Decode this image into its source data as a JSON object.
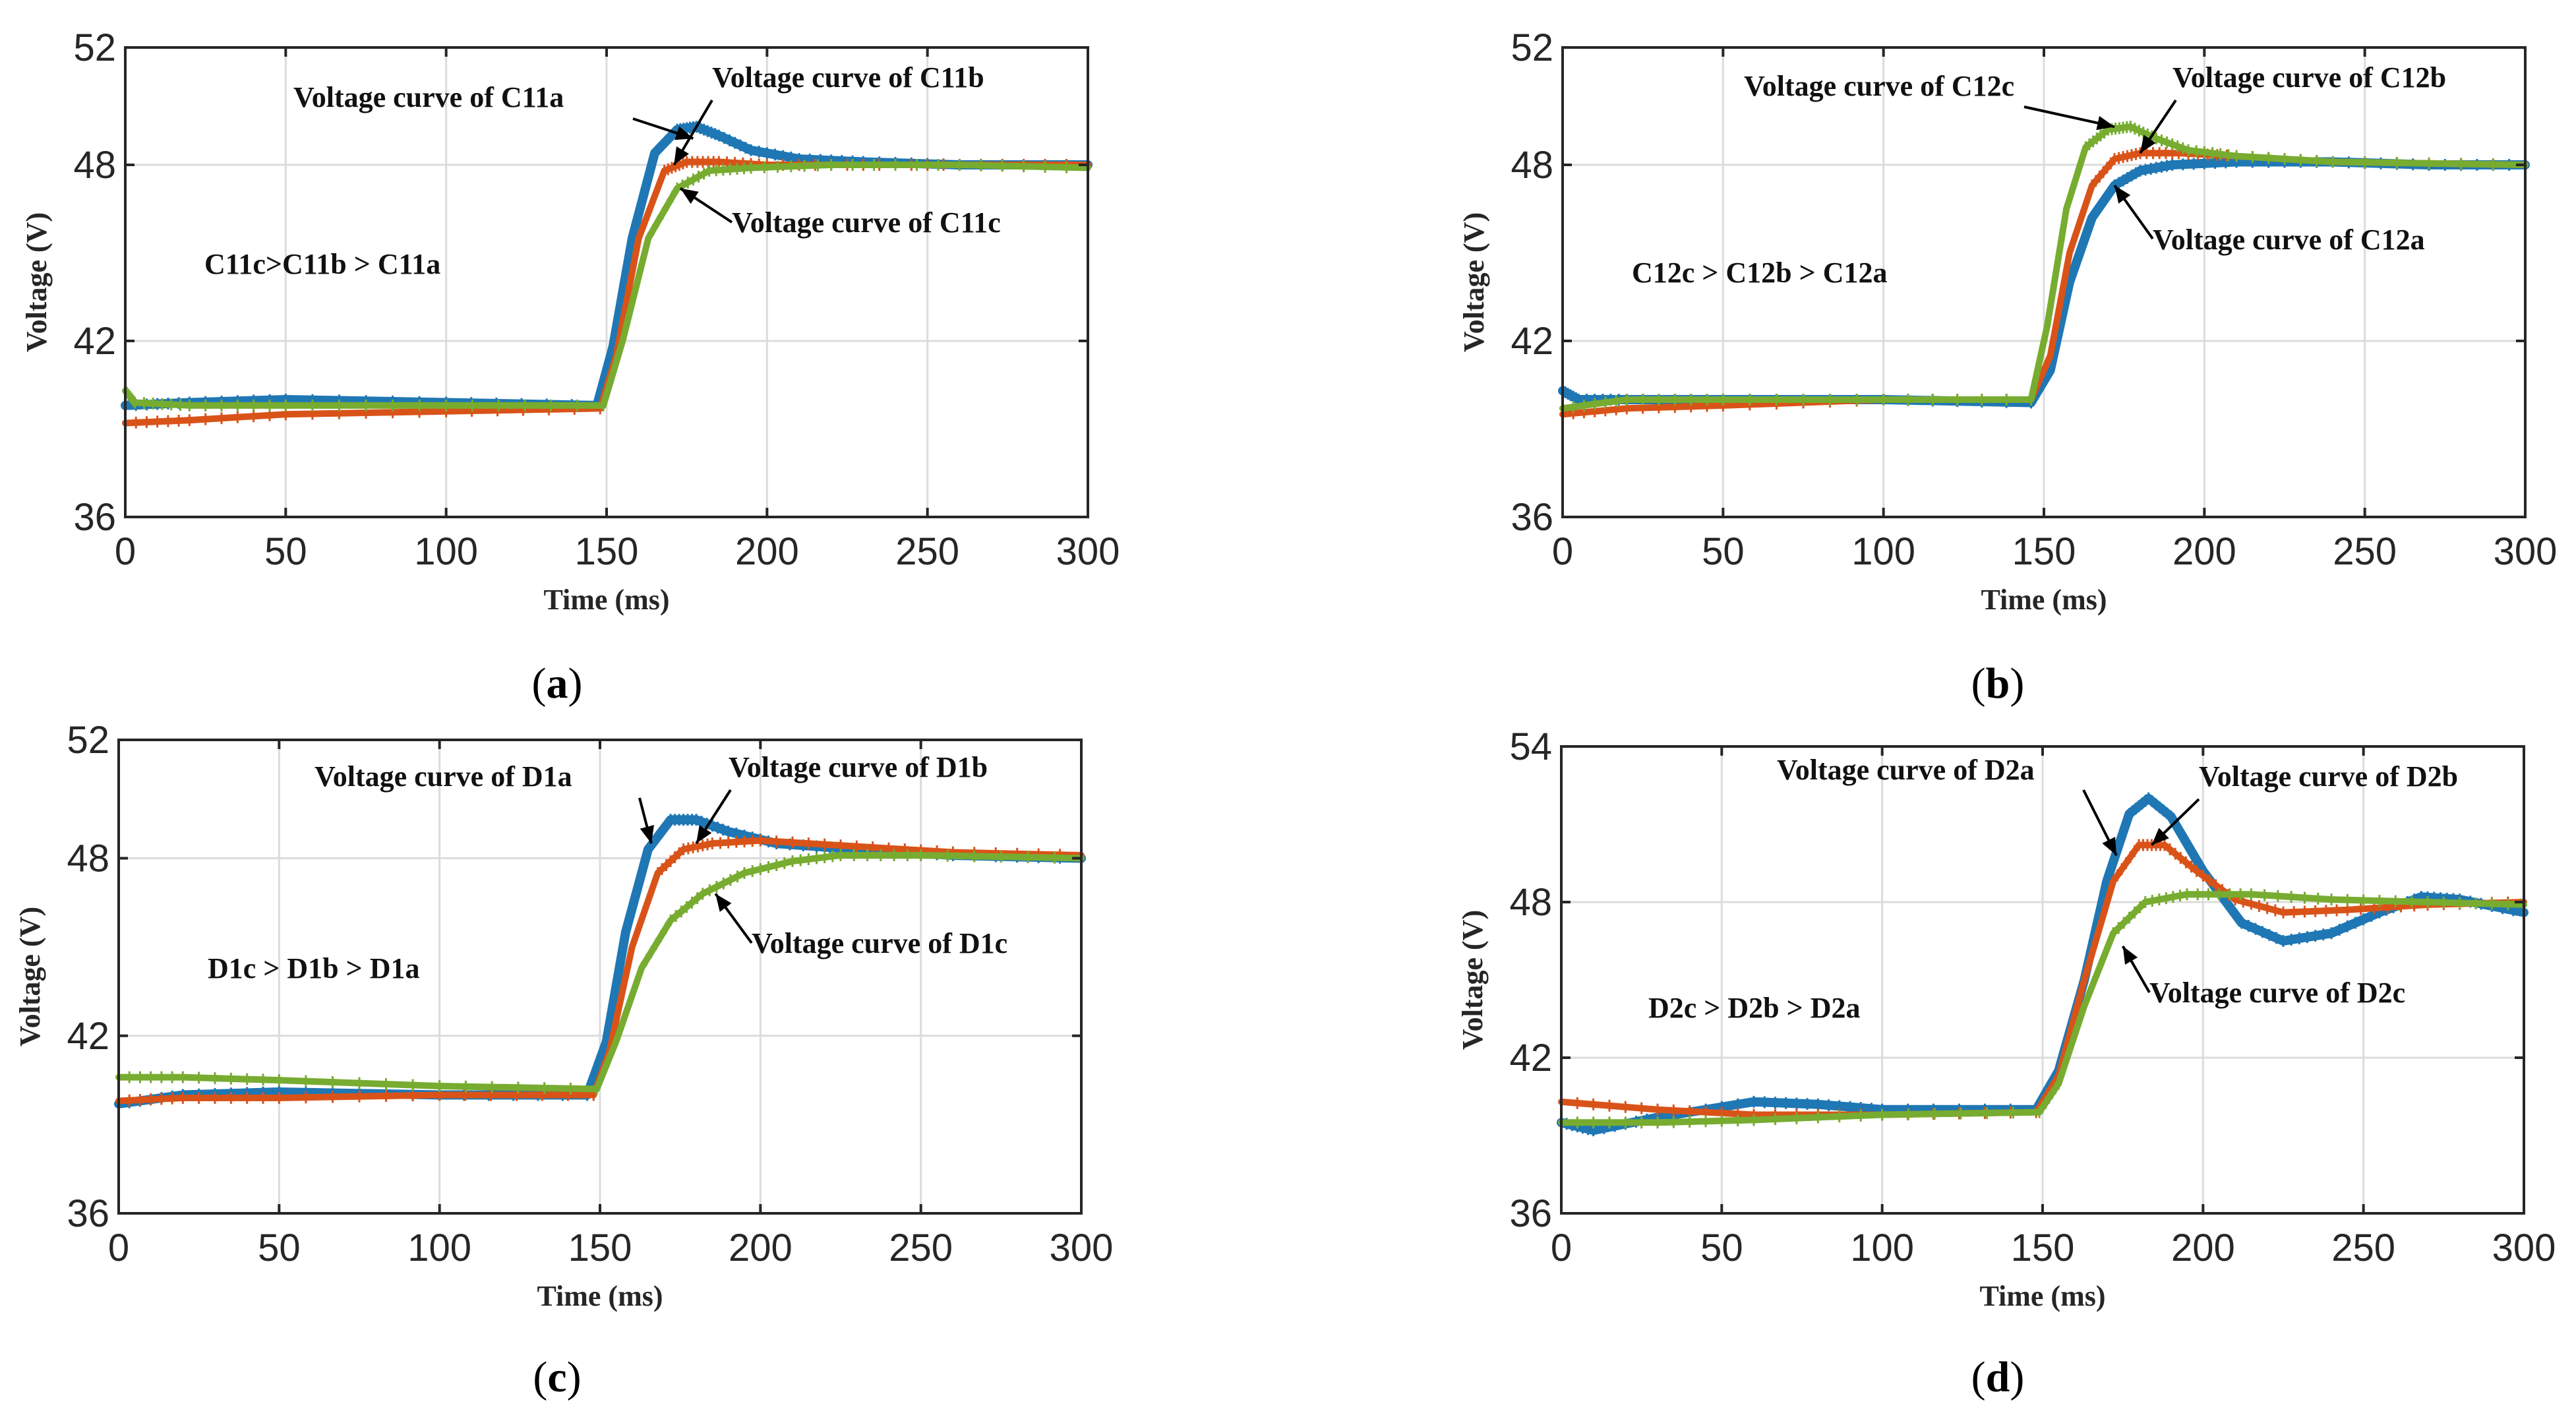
{
  "chart_data": [
    {
      "type": "line",
      "panel": "(a)",
      "caption": {
        "open": "(",
        "letter": "a",
        "close": ")"
      },
      "xlabel": "Time (ms)",
      "ylabel": "Voltage (V)",
      "xlim": [
        0,
        300
      ],
      "ylim": [
        36,
        52
      ],
      "xticks": [
        0,
        50,
        100,
        150,
        200,
        250,
        300
      ],
      "yticks": [
        36,
        42,
        48,
        52
      ],
      "grid": true,
      "inequality": "C11c>C11b > C11a",
      "series": [
        {
          "color": "#1f77b4",
          "x": [
            0,
            20,
            50,
            100,
            147,
            152,
            158,
            165,
            172,
            178,
            185,
            195,
            210,
            230,
            260,
            300
          ],
          "y": [
            39.8,
            39.9,
            40.0,
            39.9,
            39.8,
            41.8,
            45.5,
            48.4,
            49.2,
            49.3,
            49.0,
            48.5,
            48.2,
            48.1,
            48.0,
            48.0
          ]
        },
        {
          "color": "#d95319",
          "x": [
            0,
            20,
            50,
            100,
            148,
            153,
            160,
            168,
            175,
            185,
            200,
            230,
            260,
            300
          ],
          "y": [
            39.2,
            39.3,
            39.5,
            39.6,
            39.7,
            41.5,
            45.5,
            47.8,
            48.1,
            48.1,
            48.0,
            48.0,
            48.0,
            48.0
          ]
        },
        {
          "color": "#77ac30",
          "x": [
            0,
            3,
            20,
            50,
            100,
            149,
            155,
            163,
            172,
            182,
            195,
            220,
            260,
            300
          ],
          "y": [
            40.3,
            39.9,
            39.8,
            39.8,
            39.8,
            39.8,
            42.0,
            45.5,
            47.2,
            47.8,
            47.9,
            48.0,
            48.0,
            47.9
          ]
        }
      ],
      "annotations": [
        {
          "text": "Voltage curve of C11a",
          "at": [
            177,
            48.9
          ]
        },
        {
          "text": "Voltage curve of C11b",
          "at": [
            171,
            48.0
          ]
        },
        {
          "text": "Voltage curve of C11c",
          "at": [
            173,
            47.2
          ]
        }
      ]
    },
    {
      "type": "line",
      "panel": "(b)",
      "caption": {
        "open": "(",
        "letter": "b",
        "close": ")"
      },
      "xlabel": "Time (ms)",
      "ylabel": "Voltage (V)",
      "xlim": [
        0,
        300
      ],
      "ylim": [
        36,
        52
      ],
      "xticks": [
        0,
        50,
        100,
        150,
        200,
        250,
        300
      ],
      "yticks": [
        36,
        42,
        48,
        52
      ],
      "grid": true,
      "inequality": "C12c > C12b > C12a",
      "series": [
        {
          "color": "#1f77b4",
          "x": [
            0,
            5,
            20,
            50,
            100,
            146,
            152,
            158,
            165,
            172,
            180,
            190,
            210,
            240,
            270,
            300
          ],
          "y": [
            40.3,
            40.0,
            40.0,
            40.0,
            40.0,
            39.9,
            41.0,
            44.0,
            46.2,
            47.3,
            47.8,
            48.0,
            48.1,
            48.1,
            48.0,
            48.0
          ]
        },
        {
          "color": "#d95319",
          "x": [
            0,
            20,
            50,
            100,
            146,
            152,
            158,
            165,
            172,
            180,
            192,
            210,
            240,
            300
          ],
          "y": [
            39.5,
            39.7,
            39.8,
            40.0,
            40.0,
            41.5,
            45.0,
            47.3,
            48.2,
            48.4,
            48.4,
            48.3,
            48.1,
            48.0
          ]
        },
        {
          "color": "#77ac30",
          "x": [
            0,
            20,
            50,
            100,
            146,
            151,
            157,
            163,
            170,
            177,
            185,
            195,
            210,
            240,
            300
          ],
          "y": [
            39.7,
            40.0,
            40.0,
            40.0,
            40.0,
            42.5,
            46.5,
            48.6,
            49.2,
            49.3,
            48.9,
            48.5,
            48.3,
            48.1,
            48.0
          ]
        }
      ],
      "annotations": [
        {
          "text": "Voltage curve of C12c",
          "at": [
            172,
            49.3
          ]
        },
        {
          "text": "Voltage curve of C12b",
          "at": [
            180,
            48.4
          ]
        },
        {
          "text": "Voltage curve of C12a",
          "at": [
            172,
            47.3
          ]
        }
      ]
    },
    {
      "type": "line",
      "panel": "(c)",
      "caption": {
        "open": "(",
        "letter": "c",
        "close": ")"
      },
      "xlabel": "Time (ms)",
      "ylabel": "Voltage (V)",
      "xlim": [
        0,
        300
      ],
      "ylim": [
        36,
        52
      ],
      "xticks": [
        0,
        50,
        100,
        150,
        200,
        250,
        300
      ],
      "yticks": [
        36,
        42,
        48,
        52
      ],
      "grid": true,
      "inequality": "D1c > D1b > D1a",
      "series": [
        {
          "color": "#1f77b4",
          "x": [
            0,
            20,
            50,
            100,
            146,
            152,
            158,
            165,
            172,
            180,
            190,
            205,
            230,
            260,
            300
          ],
          "y": [
            39.7,
            40.0,
            40.1,
            40.0,
            40.0,
            41.8,
            45.5,
            48.3,
            49.3,
            49.3,
            48.9,
            48.5,
            48.3,
            48.1,
            48.0
          ]
        },
        {
          "color": "#d95319",
          "x": [
            0,
            20,
            50,
            100,
            148,
            153,
            160,
            168,
            176,
            185,
            200,
            230,
            260,
            300
          ],
          "y": [
            39.8,
            39.9,
            39.9,
            40.0,
            40.0,
            41.5,
            45.0,
            47.5,
            48.3,
            48.5,
            48.6,
            48.4,
            48.2,
            48.1
          ]
        },
        {
          "color": "#77ac30",
          "x": [
            0,
            20,
            50,
            100,
            149,
            155,
            163,
            172,
            182,
            195,
            210,
            225,
            250,
            300
          ],
          "y": [
            40.6,
            40.6,
            40.5,
            40.3,
            40.2,
            41.8,
            44.3,
            45.9,
            46.8,
            47.5,
            47.9,
            48.1,
            48.1,
            48.0
          ]
        }
      ],
      "annotations": [
        {
          "text": "Voltage curve of D1a",
          "at": [
            166,
            48.5
          ]
        },
        {
          "text": "Voltage curve of D1b",
          "at": [
            180,
            48.5
          ]
        },
        {
          "text": "Voltage curve of D1c",
          "at": [
            186,
            46.8
          ]
        }
      ]
    },
    {
      "type": "line",
      "panel": "(d)",
      "caption": {
        "open": "(",
        "letter": "d",
        "close": ")"
      },
      "xlabel": "Time (ms)",
      "ylabel": "Voltage (V)",
      "xlim": [
        0,
        300
      ],
      "ylim": [
        36,
        54
      ],
      "xticks": [
        0,
        50,
        100,
        150,
        200,
        250,
        300
      ],
      "yticks": [
        36,
        42,
        48,
        54
      ],
      "grid": true,
      "inequality": "D2c > D2b > D2a",
      "series": [
        {
          "color": "#1f77b4",
          "x": [
            0,
            10,
            30,
            60,
            80,
            100,
            148,
            155,
            163,
            170,
            177,
            183,
            190,
            200,
            212,
            225,
            240,
            255,
            268,
            280,
            300
          ],
          "y": [
            39.5,
            39.2,
            39.7,
            40.3,
            40.2,
            40.0,
            40.0,
            41.5,
            45.0,
            48.8,
            51.4,
            52.0,
            51.3,
            49.2,
            47.2,
            46.5,
            46.8,
            47.6,
            48.2,
            48.1,
            47.6
          ]
        },
        {
          "color": "#d95319",
          "x": [
            0,
            30,
            60,
            100,
            148,
            155,
            163,
            172,
            180,
            188,
            198,
            210,
            225,
            245,
            270,
            300
          ],
          "y": [
            40.3,
            40.0,
            39.8,
            39.8,
            39.9,
            41.3,
            45.0,
            48.8,
            50.2,
            50.2,
            49.2,
            48.1,
            47.6,
            47.7,
            47.9,
            48.0
          ]
        },
        {
          "color": "#77ac30",
          "x": [
            0,
            30,
            60,
            100,
            149,
            155,
            163,
            172,
            182,
            195,
            215,
            240,
            270,
            300
          ],
          "y": [
            39.5,
            39.5,
            39.6,
            39.8,
            39.9,
            41.0,
            44.0,
            46.8,
            48.0,
            48.3,
            48.3,
            48.1,
            48.0,
            47.9
          ]
        }
      ],
      "annotations": [
        {
          "text": "Voltage curve of D2a",
          "at": [
            173,
            49.8
          ]
        },
        {
          "text": "Voltage curve of D2b",
          "at": [
            184,
            50.2
          ]
        },
        {
          "text": "Voltage curve of D2c",
          "at": [
            175,
            46.3
          ]
        }
      ]
    }
  ]
}
